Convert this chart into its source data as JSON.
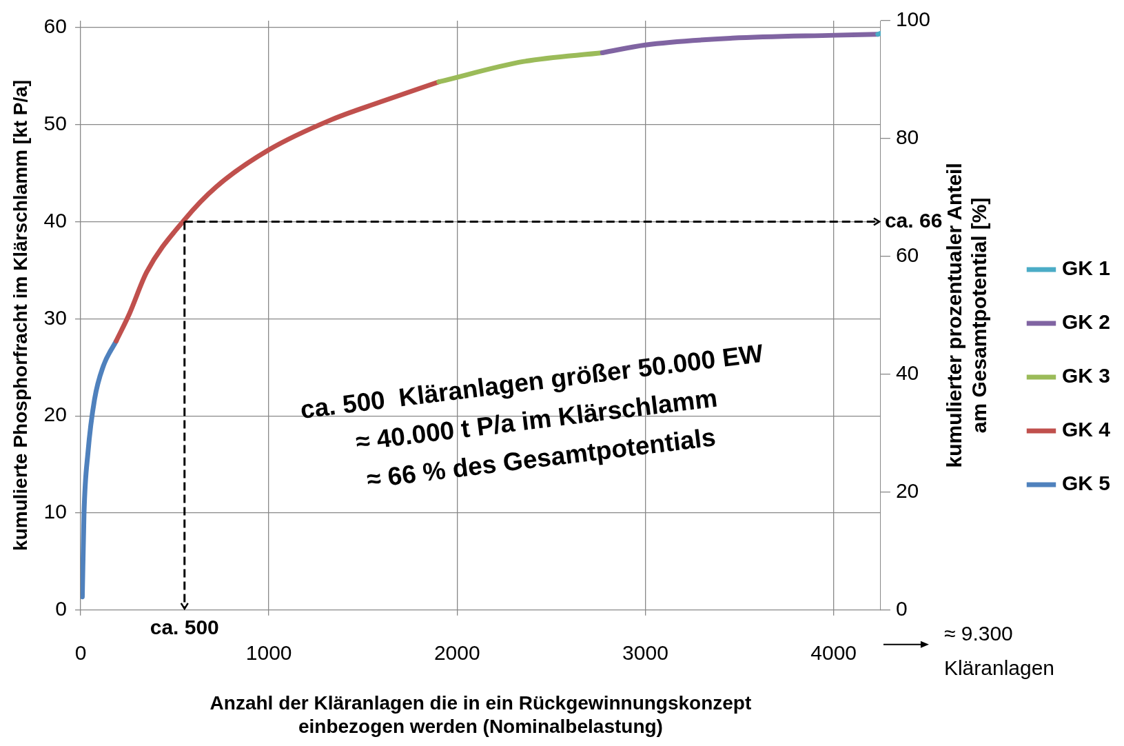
{
  "chart_data": {
    "type": "line",
    "xlabel": "Anzahl der Kläranlagen die in ein Rückgewinnungskonzept\neinbezogen werden (Nominalbelastung)",
    "ylabel": "kumulierte Phosphorfracht im Klärschlamm [kt P/a]",
    "y2label": "kumulierter prozentualer Anteil\nam Gesamtpotential [%]",
    "xlim": [
      0,
      4250
    ],
    "xticks": [
      0,
      1000,
      2000,
      3000,
      4000
    ],
    "ylim": [
      0,
      60.7
    ],
    "yticks": [
      0,
      10,
      20,
      30,
      40,
      50,
      60
    ],
    "y2lim": [
      0,
      100
    ],
    "y2ticks": [
      0,
      20,
      40,
      60,
      80,
      100
    ],
    "ref_lines": [
      {
        "axis": "x",
        "value": 552,
        "label": "ca. 500",
        "color": "#000000",
        "line_style": "dashed"
      },
      {
        "axis": "y",
        "value": 40,
        "label": "ca. 66",
        "color": "#000000",
        "line_style": "dashed"
      }
    ],
    "grid": true,
    "legend": "right",
    "marker": "none",
    "line_style": "solid",
    "series": [
      {
        "name": "GK 1",
        "color": "#4bacc6",
        "x": [
          4235,
          4250
        ],
        "values": [
          59.3,
          59.4
        ]
      },
      {
        "name": "GK 2",
        "color": "#8064a2",
        "x": [
          2772,
          3000,
          3462,
          4004,
          4235
        ],
        "values": [
          57.4,
          58.2,
          58.9,
          59.2,
          59.3
        ]
      },
      {
        "name": "GK 3",
        "color": "#9bbb59",
        "x": [
          1903,
          2354,
          2772
        ],
        "values": [
          54.4,
          56.5,
          57.4
        ]
      },
      {
        "name": "GK 4",
        "color": "#c0504d",
        "x": [
          189,
          259,
          351,
          552,
          721,
          1000,
          1332,
          1588,
          1903
        ],
        "values": [
          27.7,
          30.5,
          34.8,
          40.2,
          43.6,
          47.4,
          50.5,
          52.3,
          54.4
        ]
      },
      {
        "name": "GK 5",
        "color": "#4f81bd",
        "x": [
          9,
          18,
          39,
          74,
          120,
          189
        ],
        "values": [
          1.35,
          9.9,
          16.2,
          21.7,
          25.1,
          27.7
        ]
      }
    ],
    "annotations": [
      "ca. 500  Kläranlagen größer 50.000 EW",
      "≈ 40.000 t P/a im Klärschlamm",
      "≈ 66 % des Gesamtpotentials",
      "≈ 9.300\nKläranlagen"
    ]
  }
}
